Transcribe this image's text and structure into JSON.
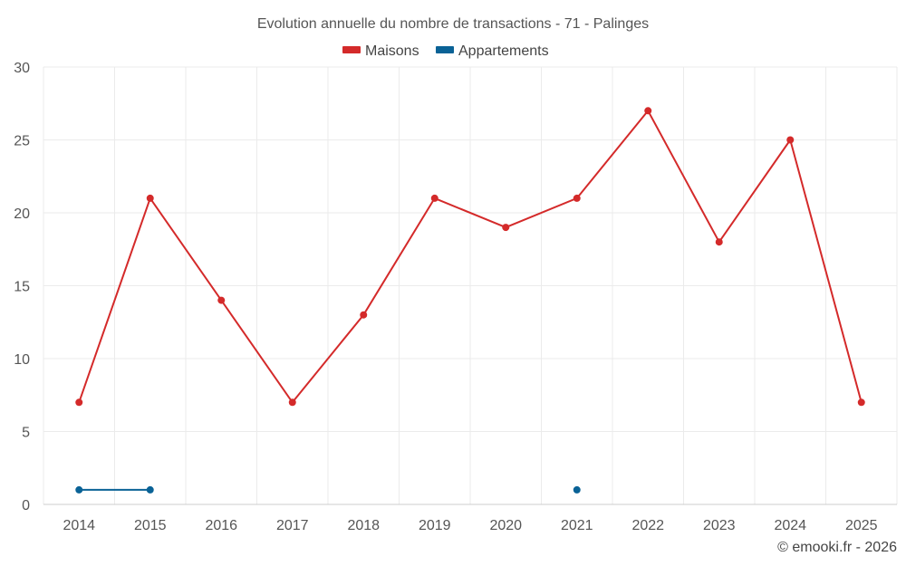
{
  "chart_data": {
    "type": "line",
    "title": "Evolution annuelle du nombre de transactions - 71 - Palinges",
    "xlabel": "",
    "ylabel": "",
    "x": [
      "2014",
      "2015",
      "2016",
      "2017",
      "2018",
      "2019",
      "2020",
      "2021",
      "2022",
      "2023",
      "2024",
      "2025"
    ],
    "ylim": [
      0,
      30
    ],
    "yticks": [
      "0",
      "5",
      "10",
      "15",
      "20",
      "25",
      "30"
    ],
    "grid": true,
    "legend_position": "top-center",
    "series": [
      {
        "name": "Maisons",
        "color": "#d42a2a",
        "values": [
          7,
          21,
          14,
          7,
          13,
          21,
          19,
          21,
          27,
          18,
          25,
          7
        ]
      },
      {
        "name": "Appartements",
        "color": "#0a6296",
        "values": [
          1,
          1,
          null,
          null,
          null,
          null,
          null,
          1,
          null,
          null,
          null,
          null
        ]
      }
    ],
    "credit": "© emooki.fr - 2026"
  }
}
